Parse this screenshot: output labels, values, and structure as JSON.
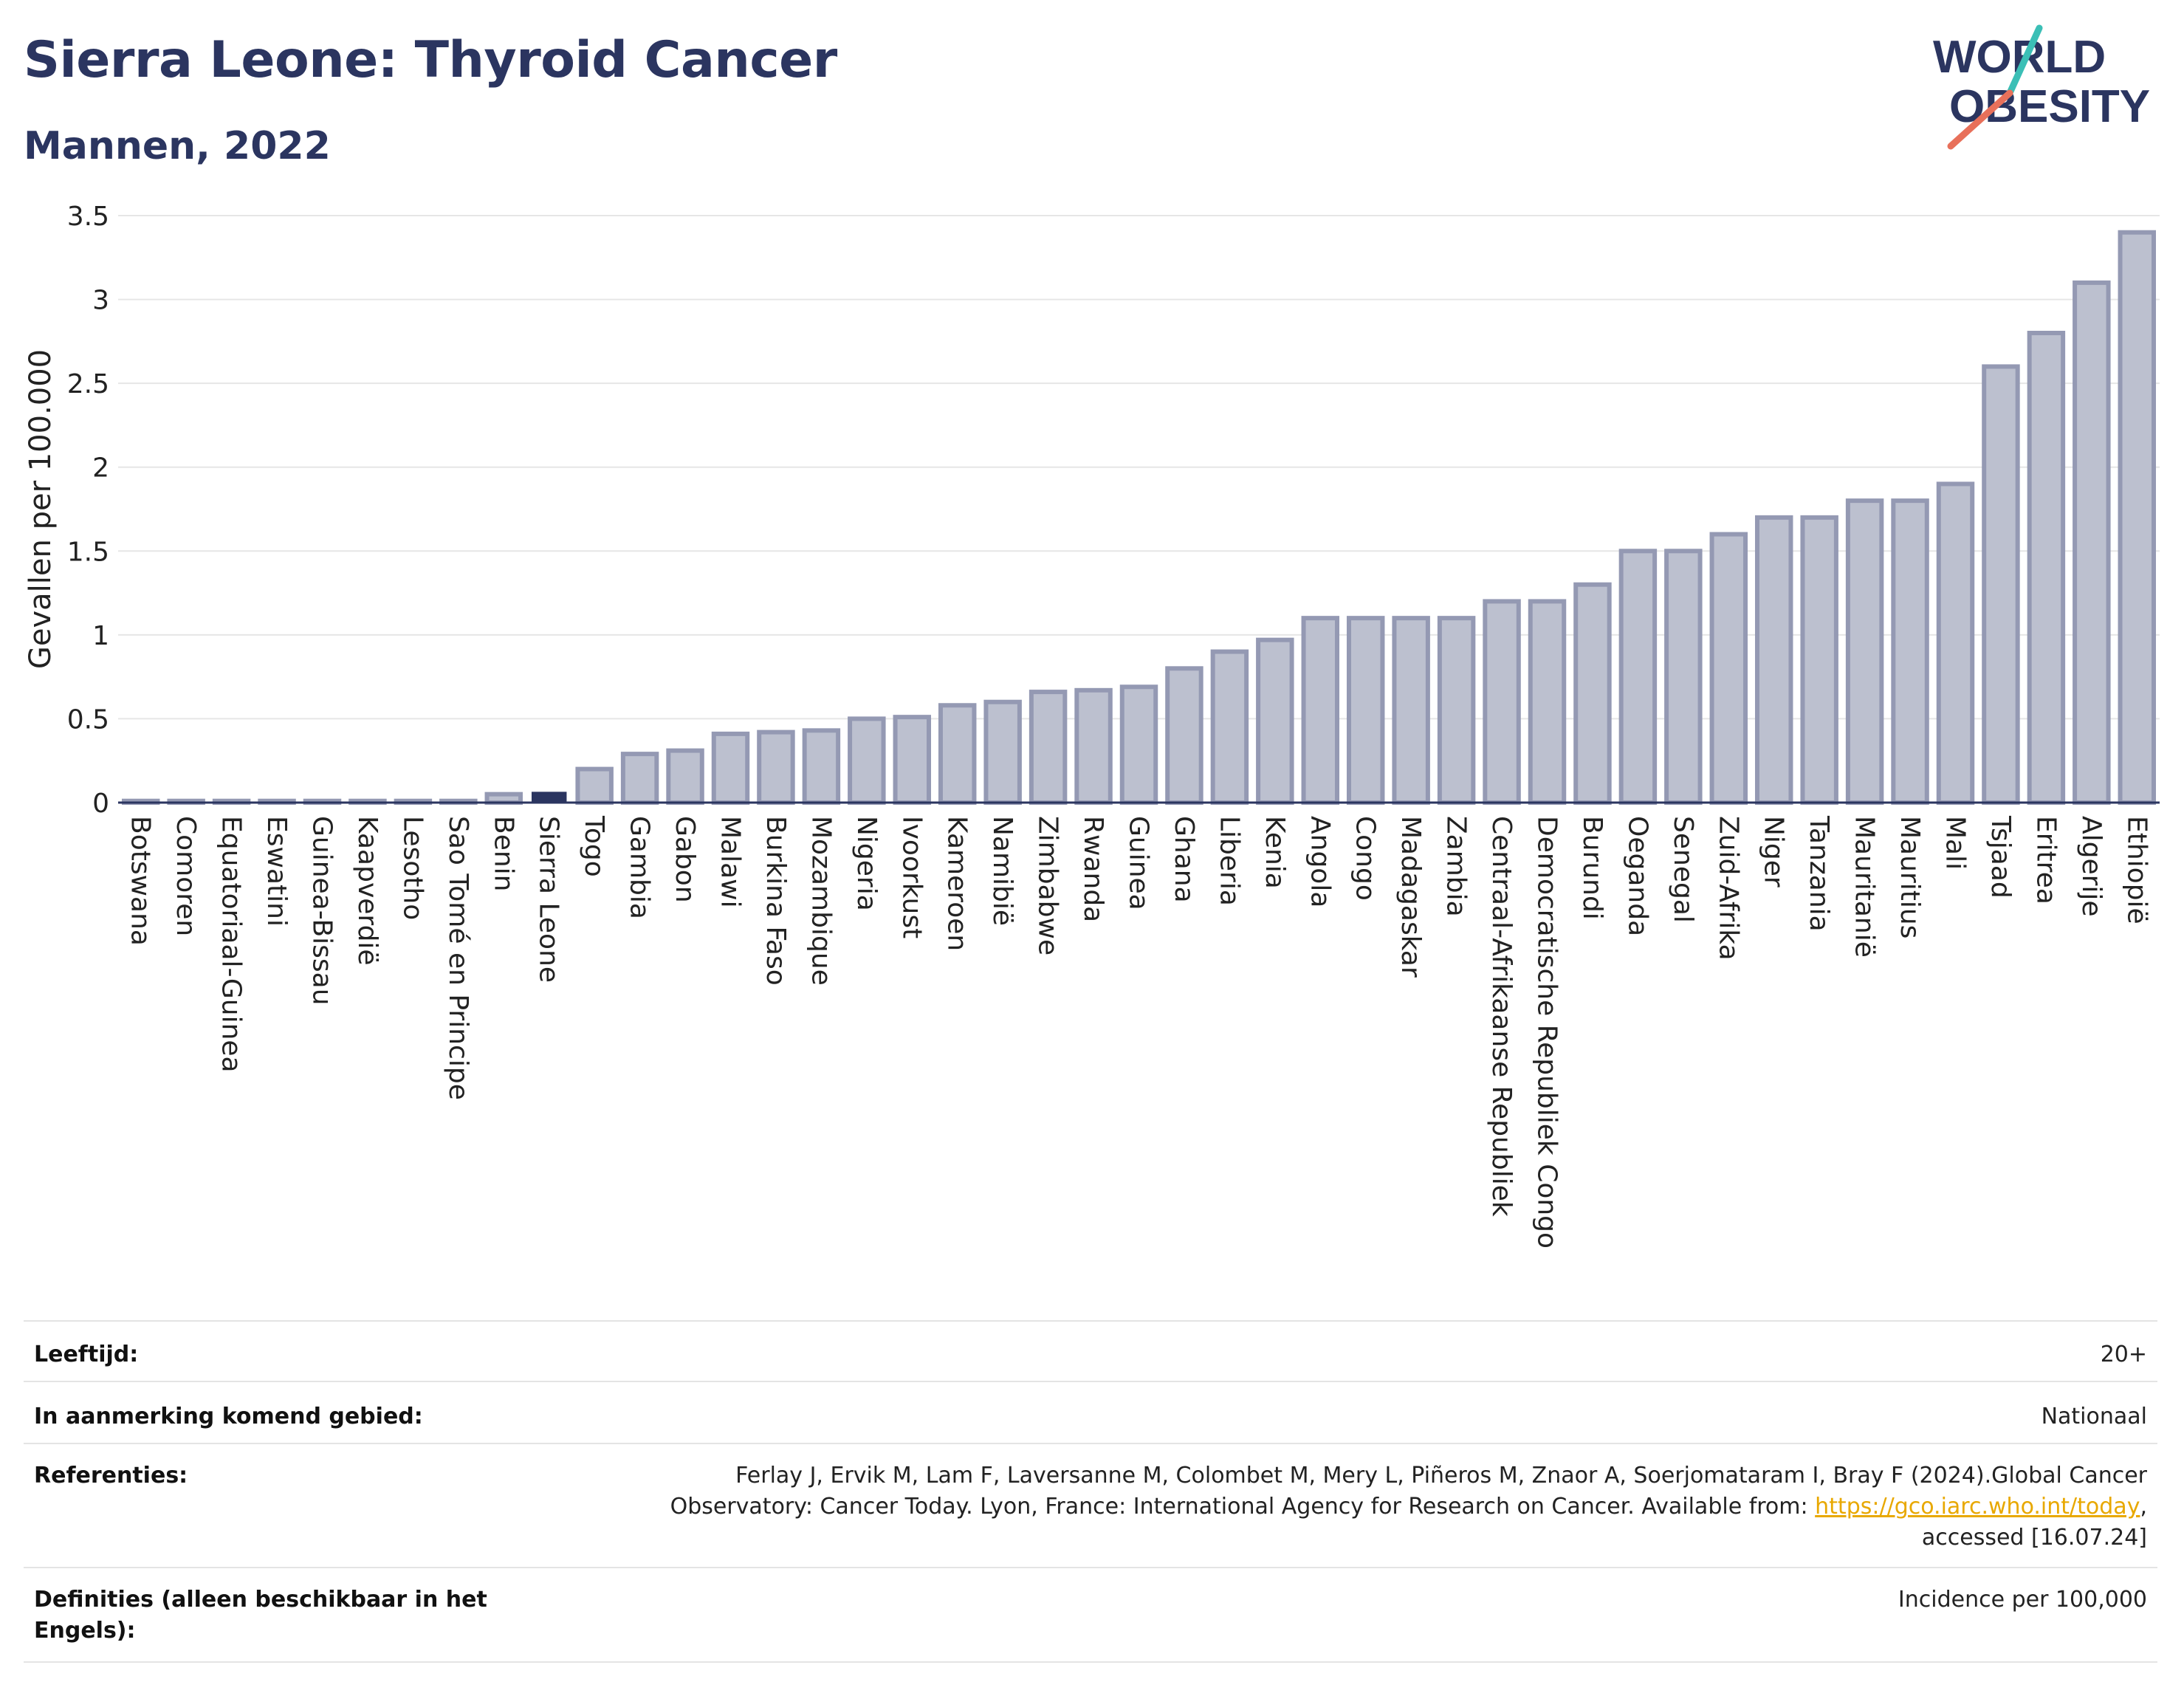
{
  "header": {
    "title": "Sierra Leone: Thyroid Cancer",
    "subtitle": "Mannen, 2022"
  },
  "logo": {
    "line1": "WORLD",
    "line2": "OBESITY",
    "colors": {
      "text": "#2b3560",
      "slash_top": "#3bbfb6",
      "slash_bottom": "#e8705a"
    }
  },
  "chart_data": {
    "type": "bar",
    "title": "Sierra Leone: Thyroid Cancer",
    "subtitle": "Mannen, 2022",
    "ylabel": "Gevallen per 100.000",
    "xlabel": "",
    "ylim": [
      0,
      3.5
    ],
    "yticks": [
      0,
      0.5,
      1,
      1.5,
      2,
      2.5,
      3,
      3.5
    ],
    "ytick_labels": [
      "0",
      "0.5",
      "1",
      "1.5",
      "2",
      "2.5",
      "3",
      "3.5"
    ],
    "grid": true,
    "highlight": "Sierra Leone",
    "colors": {
      "bar": "#bcc0cf",
      "bar_edge": "#9499b3",
      "highlight": "#2b3560"
    },
    "categories": [
      "Botswana",
      "Comoren",
      "Equatoriaal-Guinea",
      "Eswatini",
      "Guinea-Bissau",
      "Kaapverdië",
      "Lesotho",
      "Sao Tomé en Principe",
      "Benin",
      "Sierra Leone",
      "Togo",
      "Gambia",
      "Gabon",
      "Malawi",
      "Burkina Faso",
      "Mozambique",
      "Nigeria",
      "Ivoorkust",
      "Kameroen",
      "Namibië",
      "Zimbabwe",
      "Rwanda",
      "Guinea",
      "Ghana",
      "Liberia",
      "Kenia",
      "Angola",
      "Congo",
      "Madagaskar",
      "Zambia",
      "Centraal-Afrikaanse Republiek",
      "Democratische Republiek Congo",
      "Burundi",
      "Oeganda",
      "Senegal",
      "Zuid-Afrika",
      "Niger",
      "Tanzania",
      "Mauritanië",
      "Mauritius",
      "Mali",
      "Tsjaad",
      "Eritrea",
      "Algerije",
      "Ethiopië"
    ],
    "values": [
      0.01,
      0.01,
      0.01,
      0.01,
      0.01,
      0.01,
      0.01,
      0.01,
      0.05,
      0.06,
      0.2,
      0.29,
      0.31,
      0.41,
      0.42,
      0.43,
      0.5,
      0.51,
      0.58,
      0.6,
      0.66,
      0.67,
      0.69,
      0.8,
      0.9,
      0.97,
      1.1,
      1.1,
      1.1,
      1.1,
      1.2,
      1.2,
      1.3,
      1.5,
      1.5,
      1.6,
      1.7,
      1.7,
      1.8,
      1.8,
      1.9,
      2.6,
      2.8,
      3.1,
      3.4
    ]
  },
  "info": {
    "age_label": "Leeftijd:",
    "age_value": "20+",
    "area_label": "In aanmerking komend gebied:",
    "area_value": "Nationaal",
    "ref_label": "Referenties:",
    "ref_line1": "Ferlay J, Ervik M, Lam F, Laversanne M, Colombet M, Mery L, Piñeros M, Znaor A, Soerjomataram I, Bray F (2024).Global Cancer",
    "ref_line2_text": "Observatory: Cancer Today. Lyon, France: International Agency for Research on Cancer. Available from: ",
    "ref_link": "https://gco.iarc.who.int/today",
    "ref_line2_after": ",",
    "ref_line3": "accessed [16.07.24]",
    "def_label_line1": "Definities (alleen beschikbaar in het",
    "def_label_line2": "Engels):",
    "def_value": "Incidence per 100,000"
  }
}
